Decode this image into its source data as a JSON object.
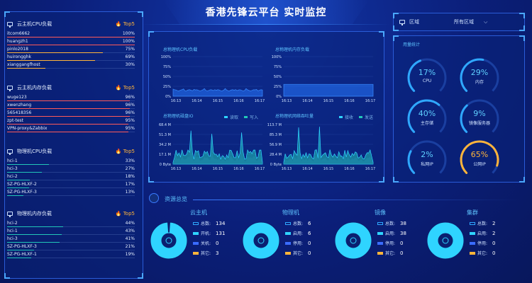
{
  "title": "香港先锋云平台 实时监控",
  "left": {
    "sections": [
      {
        "title": "云主机CPU负载",
        "badge": "Top5",
        "rows": [
          {
            "name": "itcom6662",
            "pct": "100%",
            "value": 100
          },
          {
            "name": "huangzh1",
            "pct": "100%",
            "value": 100
          },
          {
            "name": "pinlo2018",
            "pct": "75%",
            "value": 75
          },
          {
            "name": "huirongghk",
            "pct": "69%",
            "value": 69
          },
          {
            "name": "xianggangfhost",
            "pct": "30%",
            "value": 30
          }
        ]
      },
      {
        "title": "云主机内存负载",
        "badge": "Top5",
        "rows": [
          {
            "name": "wuge123",
            "pct": "96%",
            "value": 96
          },
          {
            "name": "xwenzhang",
            "pct": "96%",
            "value": 96
          },
          {
            "name": "565418356",
            "pct": "96%",
            "value": 96
          },
          {
            "name": "zpt-test",
            "pct": "95%",
            "value": 95
          },
          {
            "name": "VPN-proxy&Zabbix",
            "pct": "95%",
            "value": 95
          }
        ]
      },
      {
        "title": "物理机CPU负载",
        "badge": "Top5",
        "rows": [
          {
            "name": "hci-1",
            "pct": "33%",
            "value": 33
          },
          {
            "name": "hci-3",
            "pct": "27%",
            "value": 27
          },
          {
            "name": "hci-2",
            "pct": "18%",
            "value": 18
          },
          {
            "name": "SZ-PG-HLXF-2",
            "pct": "17%",
            "value": 17
          },
          {
            "name": "SZ-PG-HLXF-3",
            "pct": "13%",
            "value": 13
          }
        ]
      },
      {
        "title": "物理机内存负载",
        "badge": "Top5",
        "rows": [
          {
            "name": "hci-2",
            "pct": "44%",
            "value": 44
          },
          {
            "name": "hci-1",
            "pct": "43%",
            "value": 43
          },
          {
            "name": "hci-3",
            "pct": "41%",
            "value": 41
          },
          {
            "name": "SZ-PG-HLXF-3",
            "pct": "21%",
            "value": 21
          },
          {
            "name": "SZ-PG-HLXF-1",
            "pct": "19%",
            "value": 19
          }
        ]
      }
    ]
  },
  "charts": {
    "cpu": {
      "title": "总物理机CPU负载",
      "y_ticks": [
        "100%",
        "75%",
        "50%",
        "25%",
        "0%"
      ],
      "x_ticks": [
        "16:13",
        "16:14",
        "16:15",
        "16:16",
        "16:17"
      ]
    },
    "mem": {
      "title": "总物理机内存负载",
      "y_ticks": [
        "100%",
        "75%",
        "50%",
        "25%",
        "0%"
      ],
      "x_ticks": [
        "16:13",
        "16:14",
        "16:15",
        "16:16",
        "16:17"
      ]
    },
    "disk": {
      "title": "总物理机磁盘IO",
      "legend": [
        "读取",
        "写入"
      ],
      "y_ticks": [
        "68.4 M",
        "51.3 M",
        "34.2 M",
        "17.1 M",
        "0 Byte"
      ],
      "x_ticks": [
        "16:13",
        "16:14",
        "16:15",
        "16:16",
        "16:17"
      ]
    },
    "net": {
      "title": "总物理机网络吞吐量",
      "legend": [
        "接收",
        "发送"
      ],
      "y_ticks": [
        "113.7 M",
        "85.3 M",
        "56.9 M",
        "28.4 M",
        "0 Byte"
      ],
      "x_ticks": [
        "16:13",
        "16:14",
        "16:15",
        "16:16",
        "16:17"
      ]
    }
  },
  "region": {
    "label": "区域",
    "value": "所有区域"
  },
  "usage": {
    "title": "用量统计",
    "gauges": [
      {
        "label": "CPU",
        "value": "17%",
        "level": 0.17
      },
      {
        "label": "内存",
        "value": "29%",
        "level": 0.29
      },
      {
        "label": "主存储",
        "value": "40%",
        "level": 0.4
      },
      {
        "label": "镜像服务器",
        "value": "9%",
        "level": 0.09
      },
      {
        "label": "私网IP",
        "value": "2%",
        "level": 0.02
      },
      {
        "label": "公网IP",
        "value": "65%",
        "level": 0.65
      }
    ]
  },
  "resources": {
    "title": "资源总览",
    "groups": [
      {
        "name": "云主机",
        "rows": [
          {
            "label": "总数:",
            "value": "134"
          },
          {
            "label": "开机:",
            "value": "131"
          },
          {
            "label": "关机:",
            "value": "0"
          },
          {
            "label": "其它:",
            "value": "3"
          }
        ]
      },
      {
        "name": "物理机",
        "rows": [
          {
            "label": "总数:",
            "value": "6"
          },
          {
            "label": "启用:",
            "value": "6"
          },
          {
            "label": "停用:",
            "value": "0"
          },
          {
            "label": "其它:",
            "value": "0"
          }
        ]
      },
      {
        "name": "镜像",
        "rows": [
          {
            "label": "总数:",
            "value": "38"
          },
          {
            "label": "启用:",
            "value": "38"
          },
          {
            "label": "停用:",
            "value": "0"
          },
          {
            "label": "其它:",
            "value": "0"
          }
        ]
      },
      {
        "name": "集群",
        "rows": [
          {
            "label": "总数:",
            "value": "2"
          },
          {
            "label": "启用:",
            "value": "2"
          },
          {
            "label": "停用:",
            "value": "0"
          },
          {
            "label": "其它:",
            "value": "0"
          }
        ]
      }
    ]
  },
  "colors": {
    "accent": "#2fd4ff",
    "orange": "#ffb43a",
    "red_bar": "#ff5a5a",
    "blue_bar": "#3a8cff",
    "teal": "#22c7b8"
  }
}
